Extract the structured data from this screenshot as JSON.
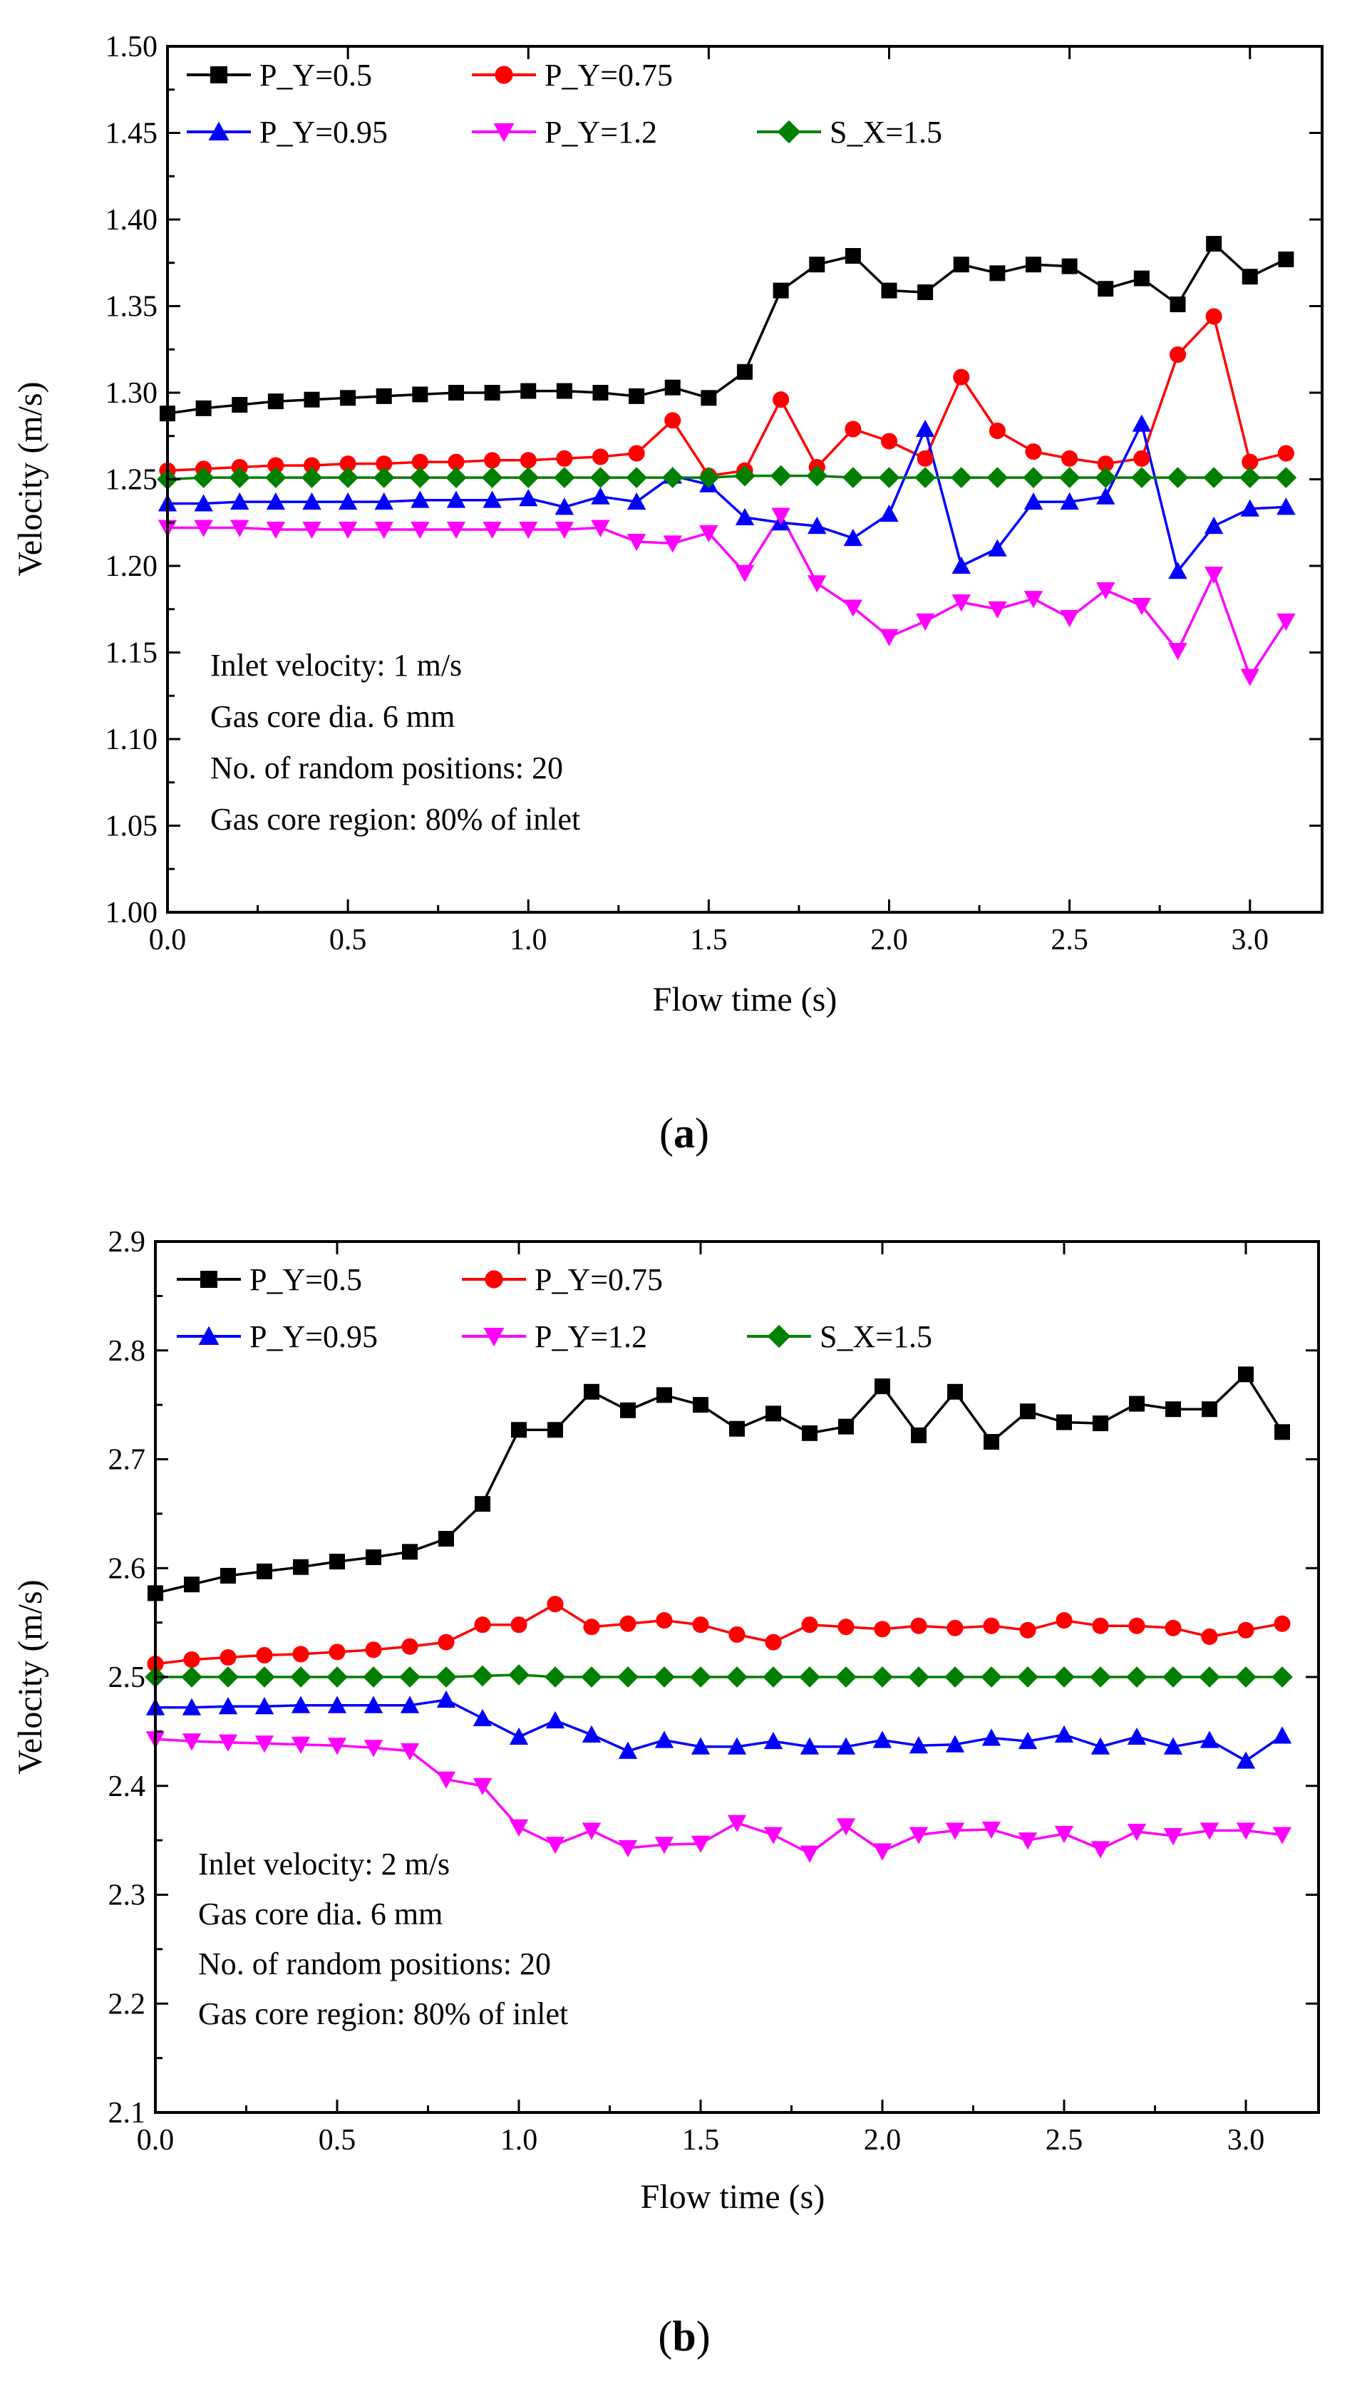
{
  "figure": {
    "panels": [
      "a",
      "b"
    ]
  },
  "chart_data": [
    {
      "panel": "(a)",
      "panel_letter": "a",
      "type": "line",
      "xlabel": "Flow time (s)",
      "ylabel": "Velocity (m/s)",
      "xlim": [
        0.0,
        3.2
      ],
      "ylim": [
        1.0,
        1.5
      ],
      "xticks": [
        0.0,
        0.5,
        1.0,
        1.5,
        2.0,
        2.5,
        3.0
      ],
      "xtick_labels": [
        "0.0",
        "0.5",
        "1.0",
        "1.5",
        "2.0",
        "2.5",
        "3.0"
      ],
      "yticks": [
        1.0,
        1.05,
        1.1,
        1.15,
        1.2,
        1.25,
        1.3,
        1.35,
        1.4,
        1.45,
        1.5
      ],
      "ytick_labels": [
        "1.00",
        "1.05",
        "1.10",
        "1.15",
        "1.20",
        "1.25",
        "1.30",
        "1.35",
        "1.40",
        "1.45",
        "1.50"
      ],
      "annotations": [
        "Inlet velocity: 1 m/s",
        "Gas core dia. 6 mm",
        "No. of random positions: 20",
        "Gas core region: 80% of inlet"
      ],
      "x": [
        0.0,
        0.1,
        0.2,
        0.3,
        0.4,
        0.5,
        0.6,
        0.7,
        0.8,
        0.9,
        1.0,
        1.1,
        1.2,
        1.3,
        1.4,
        1.5,
        1.6,
        1.7,
        1.8,
        1.9,
        2.0,
        2.1,
        2.2,
        2.3,
        2.4,
        2.5,
        2.6,
        2.7,
        2.8,
        2.9,
        3.0,
        3.1
      ],
      "series": [
        {
          "name": "P_Y=0.5",
          "color": "#000000",
          "marker": "square",
          "values": [
            1.288,
            1.291,
            1.293,
            1.295,
            1.296,
            1.297,
            1.298,
            1.299,
            1.3,
            1.3,
            1.301,
            1.301,
            1.3,
            1.298,
            1.303,
            1.297,
            1.312,
            1.359,
            1.374,
            1.379,
            1.359,
            1.358,
            1.374,
            1.369,
            1.374,
            1.373,
            1.36,
            1.366,
            1.351,
            1.386,
            1.367,
            1.377
          ]
        },
        {
          "name": "P_Y=0.75",
          "color": "#ff0000",
          "marker": "circle",
          "values": [
            1.255,
            1.256,
            1.257,
            1.258,
            1.258,
            1.259,
            1.259,
            1.26,
            1.26,
            1.261,
            1.261,
            1.262,
            1.263,
            1.265,
            1.284,
            1.252,
            1.255,
            1.296,
            1.257,
            1.279,
            1.272,
            1.262,
            1.309,
            1.278,
            1.266,
            1.262,
            1.259,
            1.262,
            1.322,
            1.344,
            1.26,
            1.265
          ]
        },
        {
          "name": "P_Y=0.95",
          "color": "#0000ff",
          "marker": "triangle-up",
          "values": [
            1.236,
            1.236,
            1.237,
            1.237,
            1.237,
            1.237,
            1.237,
            1.238,
            1.238,
            1.238,
            1.239,
            1.234,
            1.24,
            1.237,
            1.252,
            1.247,
            1.228,
            1.225,
            1.223,
            1.216,
            1.23,
            1.279,
            1.2,
            1.21,
            1.237,
            1.237,
            1.24,
            1.282,
            1.197,
            1.223,
            1.233,
            1.234
          ]
        },
        {
          "name": "P_Y=1.2",
          "color": "#ff00ff",
          "marker": "triangle-down",
          "values": [
            1.222,
            1.222,
            1.222,
            1.221,
            1.221,
            1.221,
            1.221,
            1.221,
            1.221,
            1.221,
            1.221,
            1.221,
            1.222,
            1.214,
            1.213,
            1.219,
            1.196,
            1.229,
            1.19,
            1.176,
            1.159,
            1.168,
            1.179,
            1.175,
            1.181,
            1.17,
            1.186,
            1.177,
            1.151,
            1.195,
            1.136,
            1.168
          ]
        },
        {
          "name": "S_X=1.5",
          "color": "#008000",
          "marker": "diamond",
          "values": [
            1.25,
            1.251,
            1.251,
            1.251,
            1.251,
            1.251,
            1.251,
            1.251,
            1.251,
            1.251,
            1.251,
            1.251,
            1.251,
            1.251,
            1.251,
            1.251,
            1.252,
            1.252,
            1.252,
            1.251,
            1.251,
            1.251,
            1.251,
            1.251,
            1.251,
            1.251,
            1.251,
            1.251,
            1.251,
            1.251,
            1.251,
            1.251
          ]
        }
      ]
    },
    {
      "panel": "(b)",
      "panel_letter": "b",
      "type": "line",
      "xlabel": "Flow time (s)",
      "ylabel": "Velocity (m/s)",
      "xlim": [
        0.0,
        3.2
      ],
      "ylim": [
        2.1,
        2.9
      ],
      "xticks": [
        0.0,
        0.5,
        1.0,
        1.5,
        2.0,
        2.5,
        3.0
      ],
      "xtick_labels": [
        "0.0",
        "0.5",
        "1.0",
        "1.5",
        "2.0",
        "2.5",
        "3.0"
      ],
      "yticks": [
        2.1,
        2.2,
        2.3,
        2.4,
        2.5,
        2.6,
        2.7,
        2.8,
        2.9
      ],
      "ytick_labels": [
        "2.1",
        "2.2",
        "2.3",
        "2.4",
        "2.5",
        "2.6",
        "2.7",
        "2.8",
        "2.9"
      ],
      "annotations": [
        "Inlet velocity: 2 m/s",
        "Gas core dia. 6 mm",
        "No. of random positions: 20",
        "Gas core region: 80% of inlet"
      ],
      "x": [
        0.0,
        0.1,
        0.2,
        0.3,
        0.4,
        0.5,
        0.6,
        0.7,
        0.8,
        0.9,
        1.0,
        1.1,
        1.2,
        1.3,
        1.4,
        1.5,
        1.6,
        1.7,
        1.8,
        1.9,
        2.0,
        2.1,
        2.2,
        2.3,
        2.4,
        2.5,
        2.6,
        2.7,
        2.8,
        2.9,
        3.0,
        3.1
      ],
      "series": [
        {
          "name": "P_Y=0.5",
          "color": "#000000",
          "marker": "square",
          "values": [
            2.577,
            2.585,
            2.593,
            2.597,
            2.601,
            2.606,
            2.61,
            2.615,
            2.627,
            2.659,
            2.727,
            2.727,
            2.762,
            2.745,
            2.759,
            2.75,
            2.728,
            2.742,
            2.724,
            2.73,
            2.767,
            2.722,
            2.762,
            2.716,
            2.744,
            2.734,
            2.733,
            2.751,
            2.746,
            2.746,
            2.778,
            2.725
          ]
        },
        {
          "name": "P_Y=0.75",
          "color": "#ff0000",
          "marker": "circle",
          "values": [
            2.512,
            2.516,
            2.518,
            2.52,
            2.521,
            2.523,
            2.525,
            2.528,
            2.532,
            2.548,
            2.548,
            2.567,
            2.546,
            2.549,
            2.552,
            2.548,
            2.539,
            2.532,
            2.548,
            2.546,
            2.544,
            2.547,
            2.545,
            2.547,
            2.543,
            2.552,
            2.547,
            2.547,
            2.545,
            2.537,
            2.543,
            2.549
          ]
        },
        {
          "name": "P_Y=0.95",
          "color": "#0000ff",
          "marker": "triangle-up",
          "values": [
            2.472,
            2.472,
            2.473,
            2.473,
            2.474,
            2.474,
            2.474,
            2.474,
            2.479,
            2.462,
            2.445,
            2.46,
            2.447,
            2.432,
            2.442,
            2.436,
            2.436,
            2.441,
            2.436,
            2.436,
            2.442,
            2.437,
            2.438,
            2.444,
            2.441,
            2.447,
            2.436,
            2.445,
            2.436,
            2.442,
            2.423,
            2.446
          ]
        },
        {
          "name": "P_Y=1.2",
          "color": "#ff00ff",
          "marker": "triangle-down",
          "values": [
            2.443,
            2.441,
            2.44,
            2.439,
            2.438,
            2.437,
            2.435,
            2.432,
            2.406,
            2.4,
            2.362,
            2.346,
            2.359,
            2.343,
            2.346,
            2.347,
            2.366,
            2.355,
            2.338,
            2.363,
            2.34,
            2.355,
            2.359,
            2.36,
            2.35,
            2.356,
            2.342,
            2.358,
            2.354,
            2.359,
            2.359,
            2.355
          ]
        },
        {
          "name": "S_X=1.5",
          "color": "#008000",
          "marker": "diamond",
          "values": [
            2.5,
            2.5,
            2.5,
            2.5,
            2.5,
            2.5,
            2.5,
            2.5,
            2.5,
            2.501,
            2.502,
            2.5,
            2.5,
            2.5,
            2.5,
            2.5,
            2.5,
            2.5,
            2.5,
            2.5,
            2.5,
            2.5,
            2.5,
            2.5,
            2.5,
            2.5,
            2.5,
            2.5,
            2.5,
            2.5,
            2.5,
            2.5
          ]
        }
      ]
    }
  ]
}
